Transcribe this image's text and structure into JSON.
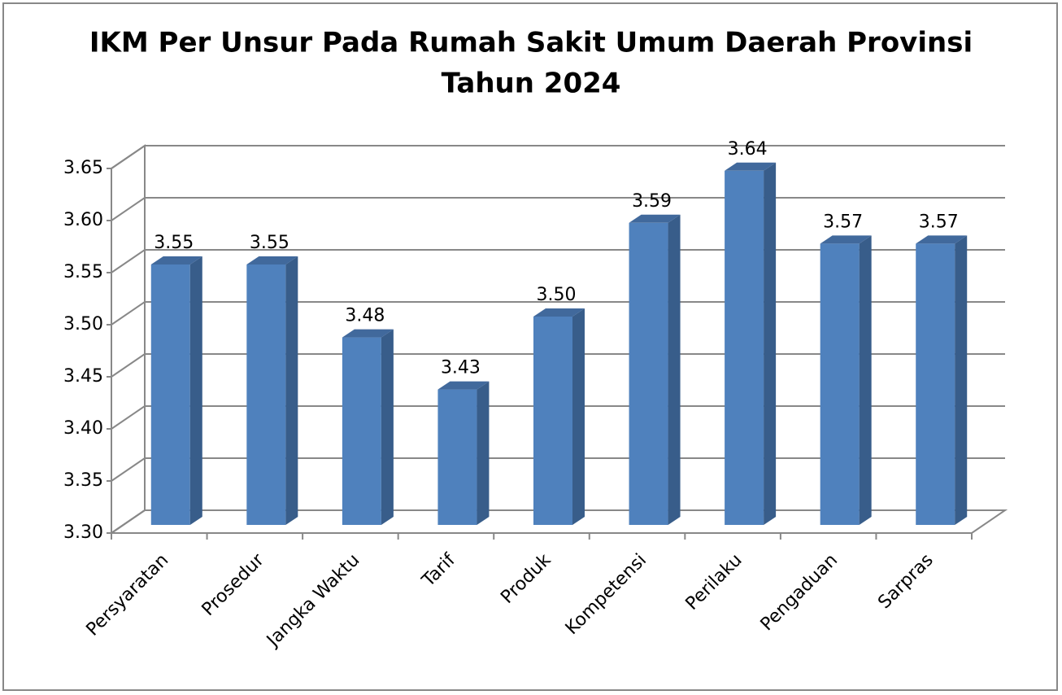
{
  "chart_data": {
    "type": "bar3d",
    "title": [
      "IKM Per Unsur Pada Rumah Sakit Umum Daerah Provinsi",
      "Tahun 2024"
    ],
    "categories": [
      "Persyaratan",
      "Prosedur",
      "Jangka Waktu",
      "Tarif",
      "Produk",
      "Kompetensi",
      "Perilaku",
      "Pengaduan",
      "Sarpras"
    ],
    "values": [
      3.55,
      3.55,
      3.48,
      3.43,
      3.5,
      3.59,
      3.64,
      3.57,
      3.57
    ],
    "value_labels": [
      "3.55",
      "3.55",
      "3.48",
      "3.43",
      "3.50",
      "3.59",
      "3.64",
      "3.57",
      "3.57"
    ],
    "color": "#4f81bd",
    "ylim": [
      3.3,
      3.65
    ],
    "yticks": [
      {
        "value": 3.3,
        "label": "3.30"
      },
      3.35,
      {
        "value": 3.4,
        "label": "3.40"
      },
      3.45,
      {
        "value": 3.5,
        "label": "3.50"
      },
      3.55,
      {
        "value": 3.6,
        "label": "3.60"
      },
      3.65
    ],
    "grid": true
  }
}
